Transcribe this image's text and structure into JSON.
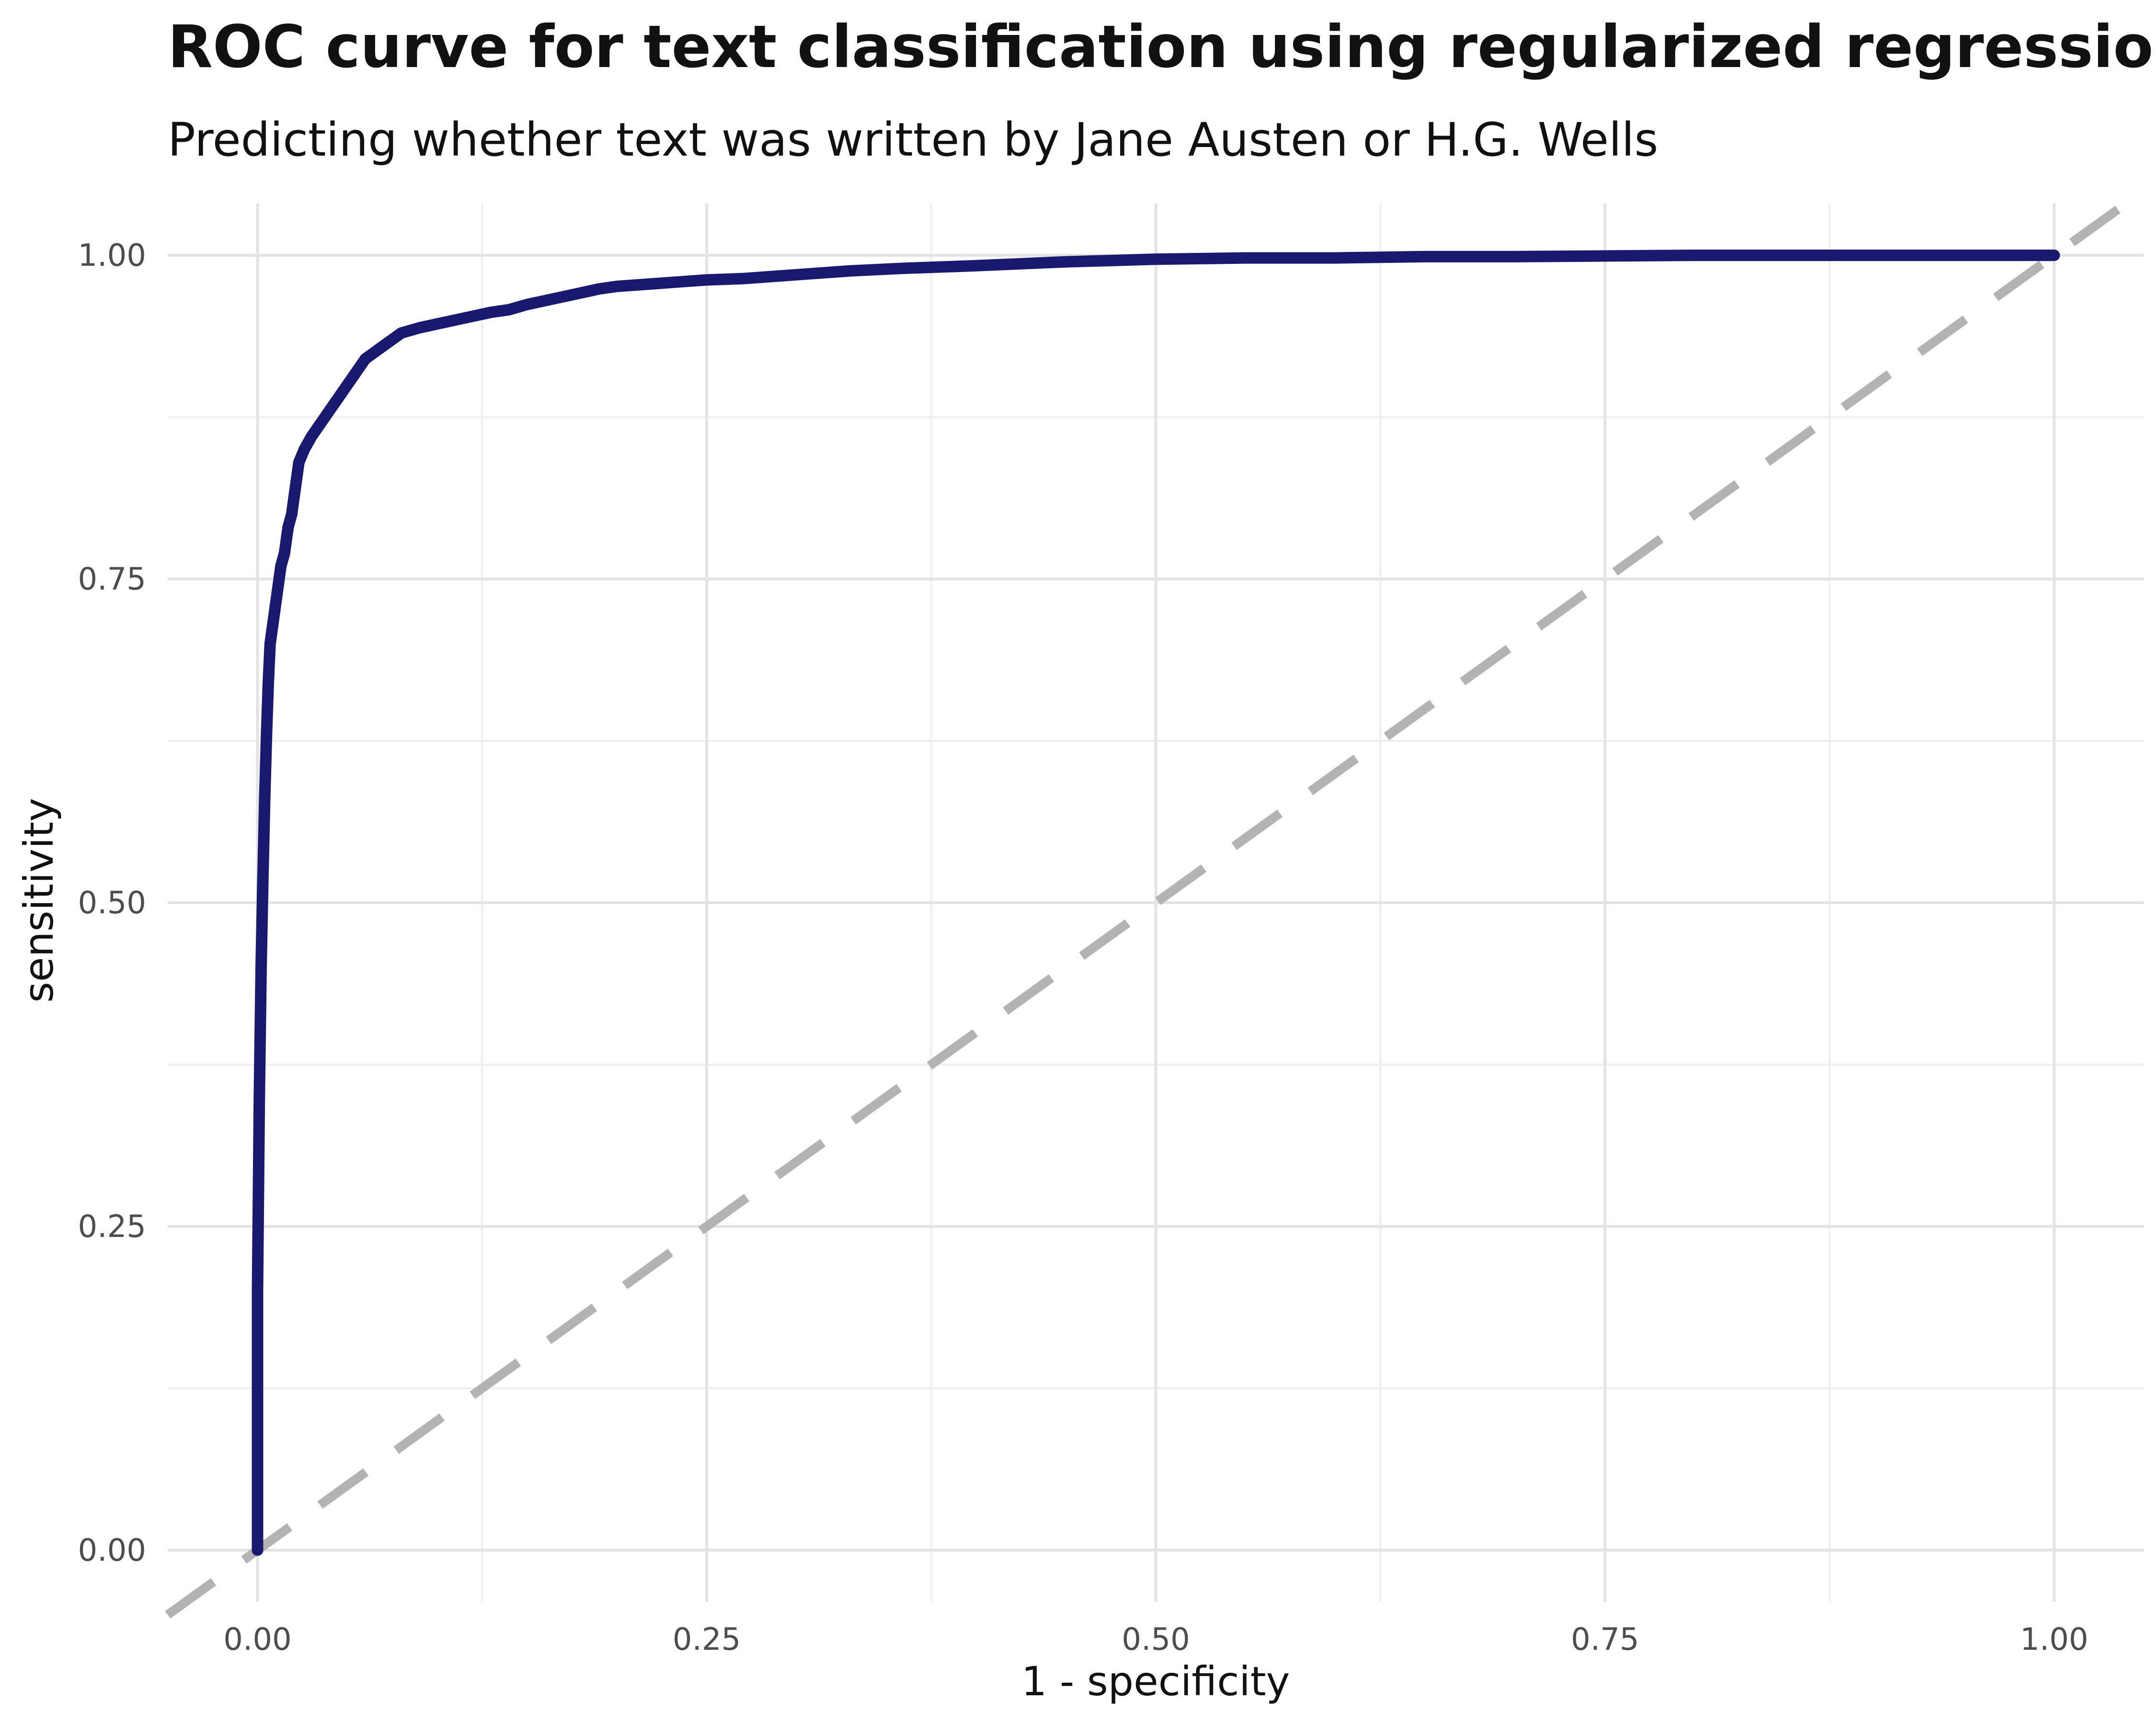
{
  "chart_data": {
    "type": "line",
    "title": "ROC curve for text classification using regularized regression",
    "subtitle": "Predicting whether text was written by Jane Austen or H.G. Wells",
    "xlabel": "1 - specificity",
    "ylabel": "sensitivity",
    "xlim": [
      -0.05,
      1.05
    ],
    "ylim": [
      -0.04,
      1.04
    ],
    "x_ticks": [
      0.0,
      0.25,
      0.5,
      0.75,
      1.0
    ],
    "x_tick_labels": [
      "0.00",
      "0.25",
      "0.50",
      "0.75",
      "1.00"
    ],
    "y_ticks": [
      0.0,
      0.25,
      0.5,
      0.75,
      1.0
    ],
    "y_tick_labels": [
      "0.00",
      "0.25",
      "0.50",
      "0.75",
      "1.00"
    ],
    "grid": true,
    "legend": "none",
    "reference_line": {
      "style": "dashed",
      "color": "#b3b3b3",
      "x": [
        -0.05,
        1.05
      ],
      "y": [
        -0.05,
        1.05
      ]
    },
    "series": [
      {
        "color": "#191970",
        "x": [
          0.0,
          0.0,
          0.001,
          0.002,
          0.003,
          0.004,
          0.005,
          0.006,
          0.007,
          0.009,
          0.011,
          0.013,
          0.015,
          0.017,
          0.019,
          0.021,
          0.023,
          0.026,
          0.03,
          0.035,
          0.04,
          0.045,
          0.05,
          0.055,
          0.06,
          0.065,
          0.07,
          0.075,
          0.08,
          0.09,
          0.1,
          0.11,
          0.12,
          0.13,
          0.14,
          0.15,
          0.16,
          0.17,
          0.18,
          0.19,
          0.2,
          0.22,
          0.24,
          0.25,
          0.27,
          0.3,
          0.33,
          0.36,
          0.4,
          0.45,
          0.5,
          0.55,
          0.6,
          0.65,
          0.7,
          0.8,
          0.9,
          1.0
        ],
        "y": [
          0.0,
          0.2,
          0.35,
          0.45,
          0.52,
          0.58,
          0.63,
          0.67,
          0.7,
          0.72,
          0.74,
          0.76,
          0.77,
          0.79,
          0.8,
          0.82,
          0.84,
          0.85,
          0.86,
          0.87,
          0.88,
          0.89,
          0.9,
          0.91,
          0.92,
          0.925,
          0.93,
          0.935,
          0.94,
          0.944,
          0.947,
          0.95,
          0.953,
          0.956,
          0.958,
          0.962,
          0.965,
          0.968,
          0.971,
          0.974,
          0.976,
          0.978,
          0.98,
          0.981,
          0.982,
          0.985,
          0.988,
          0.99,
          0.992,
          0.995,
          0.997,
          0.998,
          0.998,
          0.999,
          0.999,
          1.0,
          1.0,
          1.0
        ]
      }
    ]
  }
}
